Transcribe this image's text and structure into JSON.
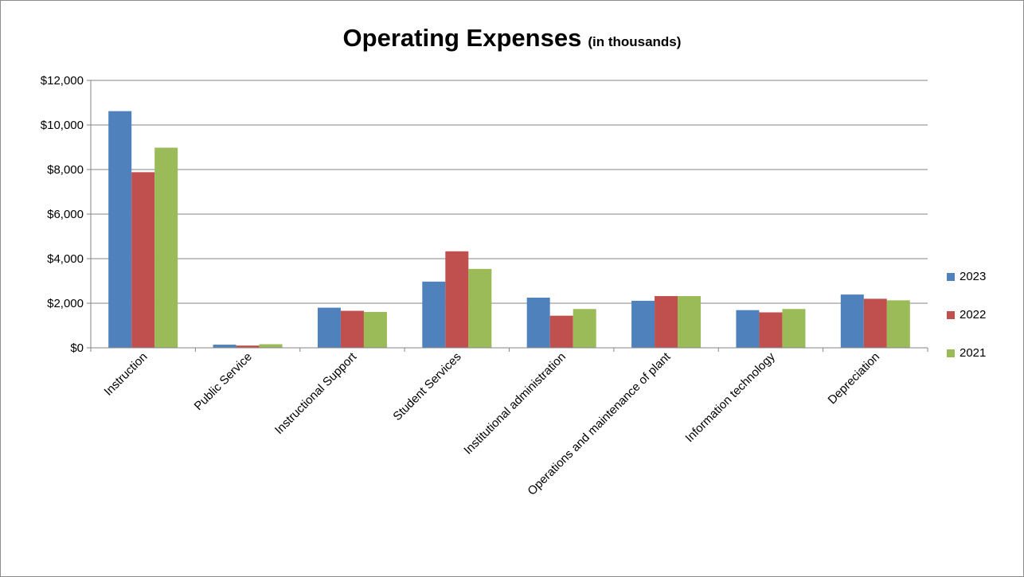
{
  "chart_data": {
    "type": "bar",
    "title": "Operating Expenses",
    "subtitle": "(in thousands)",
    "categories": [
      "Instruction",
      "Public Service",
      "Instructional Support",
      "Student Services",
      "Institutional administration",
      "Operations and maintenance of plant",
      "Information technology",
      "Depreciation"
    ],
    "series": [
      {
        "name": "2023",
        "color": "#4f81bd",
        "values": [
          10620,
          140,
          1800,
          2970,
          2250,
          2110,
          1690,
          2390
        ]
      },
      {
        "name": "2022",
        "color": "#c0504d",
        "values": [
          7880,
          100,
          1660,
          4330,
          1440,
          2320,
          1590,
          2200
        ]
      },
      {
        "name": "2021",
        "color": "#9bbb59",
        "values": [
          8980,
          160,
          1610,
          3540,
          1740,
          2320,
          1740,
          2130
        ]
      }
    ],
    "y_ticks": [
      "$0",
      "$2,000",
      "$4,000",
      "$6,000",
      "$8,000",
      "$10,000",
      "$12,000"
    ],
    "ylim": [
      0,
      12000
    ],
    "grid": true,
    "legend_position": "right"
  }
}
